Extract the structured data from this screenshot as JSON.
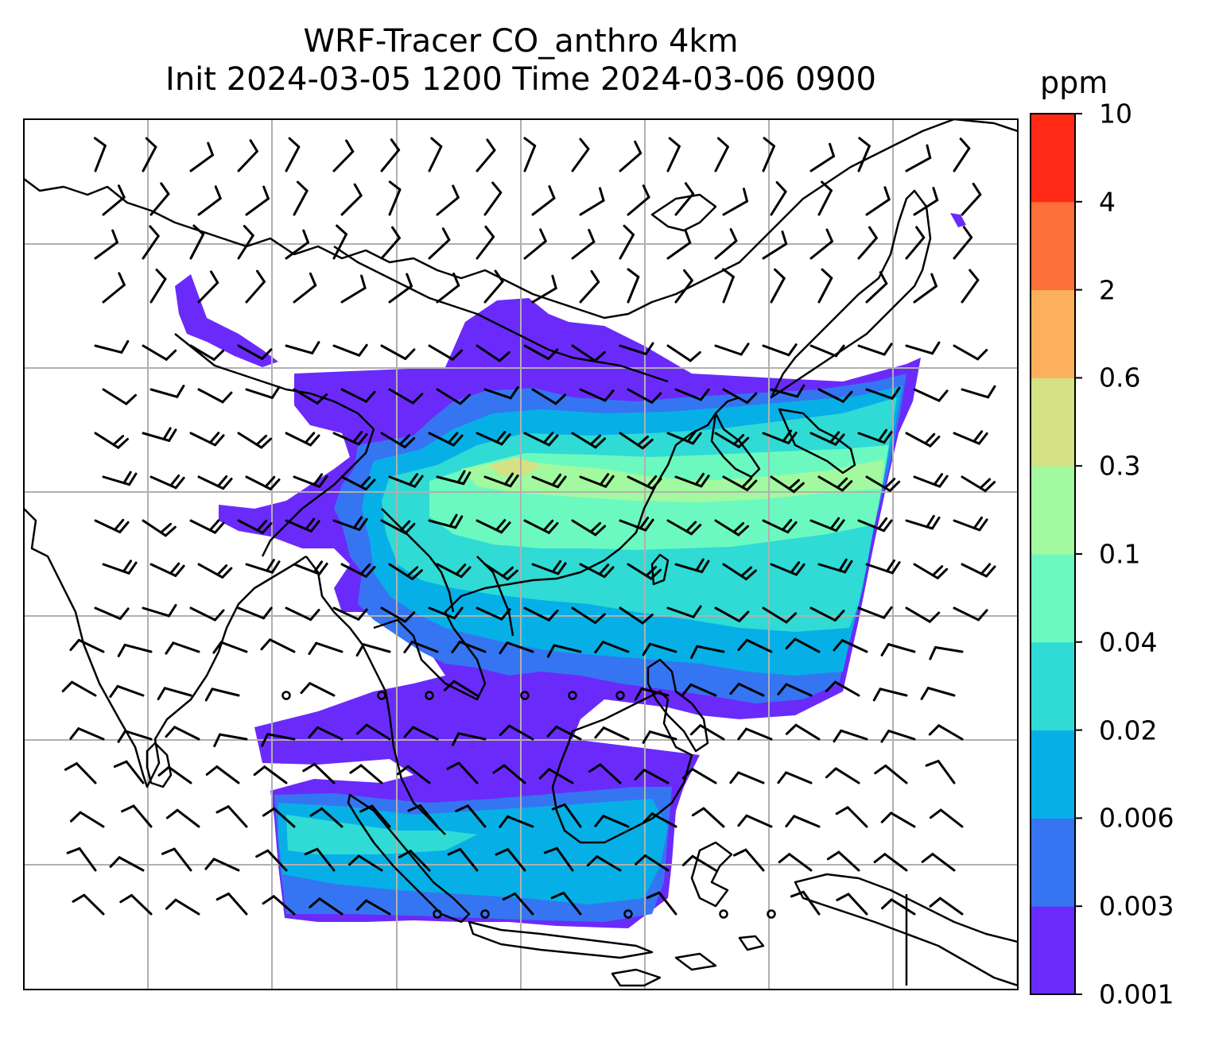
{
  "title": {
    "line1": "WRF-Tracer CO_anthro 4km",
    "line2": "Init 2024-03-05 1200 Time 2024-03-06 0900"
  },
  "colorbar": {
    "unit": "ppm",
    "levels": [
      "0.001",
      "0.003",
      "0.006",
      "0.02",
      "0.04",
      "0.1",
      "0.3",
      "0.6",
      "2",
      "4",
      "10"
    ],
    "colors": [
      "#6a2bfa",
      "#3575f2",
      "#06b0e6",
      "#2fdbd4",
      "#6cf9c0",
      "#a2f99f",
      "#d4e184",
      "#fdb05c",
      "#ff6f3a",
      "#ff2916"
    ]
  },
  "map": {
    "gridlines": true,
    "variable": "CO_anthro",
    "wind_barbs": true,
    "colors": {
      "coast": "#000000",
      "grid": "#b0b0b0",
      "barb": "#000000"
    }
  }
}
